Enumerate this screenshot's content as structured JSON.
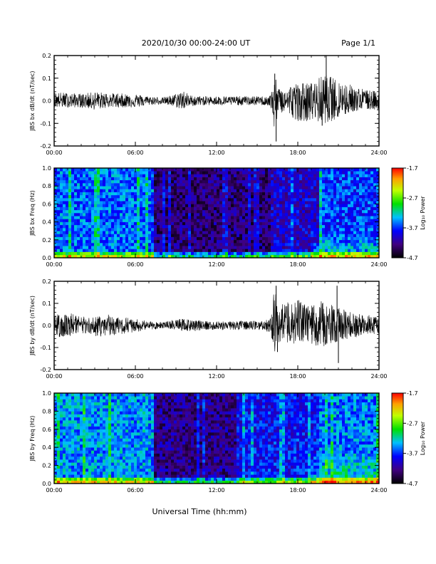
{
  "header": {
    "title": "2020/10/30  00:00-24:00 UT",
    "page": "Page 1/1"
  },
  "chart_data": [
    {
      "type": "line",
      "ylabel": "JBS bx dB/dt (nT/sec)",
      "x_range": [
        0,
        24
      ],
      "ylim": [
        -0.2,
        0.2
      ],
      "y_ticks": [
        "-0.2",
        "-0.1",
        "0.0",
        "0.1",
        "0.2"
      ],
      "x_ticks": [
        "00:00",
        "06:00",
        "12:00",
        "18:00",
        "24:00"
      ],
      "envelope": {
        "x": [
          0,
          2,
          3,
          4,
          6,
          7,
          8,
          9,
          9.5,
          10,
          11,
          12,
          14,
          15.5,
          16,
          16.3,
          16.5,
          17,
          17.5,
          18,
          19,
          20,
          21,
          22,
          23,
          24
        ],
        "upper": [
          0.04,
          0.03,
          0.04,
          0.035,
          0.03,
          0.02,
          0.015,
          0.03,
          0.05,
          0.025,
          0.02,
          0.02,
          0.02,
          0.02,
          0.025,
          0.12,
          0.06,
          0.05,
          0.07,
          0.08,
          0.08,
          0.12,
          0.09,
          0.07,
          0.05,
          0.04
        ],
        "lower": [
          -0.03,
          -0.03,
          -0.04,
          -0.03,
          -0.03,
          -0.02,
          -0.015,
          -0.03,
          -0.04,
          -0.025,
          -0.02,
          -0.02,
          -0.02,
          -0.02,
          -0.025,
          -0.18,
          -0.06,
          -0.05,
          -0.07,
          -0.09,
          -0.09,
          -0.1,
          -0.08,
          -0.05,
          -0.04,
          -0.04
        ]
      },
      "spikes": [
        {
          "x": 16.4,
          "y": -0.18
        },
        {
          "x": 16.3,
          "y": 0.12
        },
        {
          "x": 20.1,
          "y": 0.2
        },
        {
          "x": 19.8,
          "y": -0.11
        }
      ]
    },
    {
      "type": "heatmap",
      "ylabel": "JBS bx Freq (Hz)",
      "x_range": [
        0,
        24
      ],
      "ylim": [
        0,
        1
      ],
      "y_ticks": [
        "0.0",
        "0.2",
        "0.4",
        "0.6",
        "0.8",
        "1.0"
      ],
      "x_ticks": [
        "00:00",
        "06:00",
        "12:00",
        "18:00",
        "24:00"
      ],
      "colorbar": {
        "label": "Log₁₀ Power",
        "range": [
          -4.7,
          -1.7
        ],
        "ticks": [
          "-1.7",
          "-2.7",
          "-3.7",
          "-4.7"
        ]
      },
      "bands": [
        {
          "x": [
            0,
            7.3
          ],
          "level": 0.38
        },
        {
          "x": [
            7.3,
            16.0
          ],
          "level": 0.14
        },
        {
          "x": [
            16.0,
            19.5
          ],
          "level": 0.24
        },
        {
          "x": [
            19.5,
            24
          ],
          "level": 0.34
        }
      ]
    },
    {
      "type": "line",
      "ylabel": "JBS by dB/dt (nT/sec)",
      "x_range": [
        0,
        24
      ],
      "ylim": [
        -0.2,
        0.2
      ],
      "y_ticks": [
        "-0.2",
        "-0.1",
        "0.0",
        "0.1",
        "0.2"
      ],
      "x_ticks": [
        "00:00",
        "06:00",
        "12:00",
        "18:00",
        "24:00"
      ],
      "envelope": {
        "x": [
          0,
          1,
          2,
          3,
          4,
          5,
          6,
          7,
          8,
          9,
          10,
          11,
          12,
          14,
          15.5,
          16,
          16.3,
          16.5,
          17,
          18,
          19,
          20,
          21,
          22,
          23,
          24
        ],
        "upper": [
          0.05,
          0.06,
          0.04,
          0.04,
          0.05,
          0.04,
          0.03,
          0.02,
          0.015,
          0.03,
          0.03,
          0.02,
          0.02,
          0.02,
          0.02,
          0.04,
          0.18,
          0.1,
          0.1,
          0.12,
          0.09,
          0.12,
          0.08,
          0.06,
          0.05,
          0.04
        ],
        "lower": [
          -0.05,
          -0.06,
          -0.04,
          -0.05,
          -0.05,
          -0.04,
          -0.03,
          -0.02,
          -0.015,
          -0.02,
          -0.03,
          -0.02,
          -0.02,
          -0.02,
          -0.02,
          -0.04,
          -0.12,
          -0.08,
          -0.08,
          -0.09,
          -0.09,
          -0.1,
          -0.07,
          -0.06,
          -0.04,
          -0.04
        ]
      },
      "spikes": [
        {
          "x": 16.4,
          "y": 0.18
        },
        {
          "x": 16.5,
          "y": -0.12
        },
        {
          "x": 20.9,
          "y": 0.18
        },
        {
          "x": 21.0,
          "y": -0.17
        }
      ]
    },
    {
      "type": "heatmap",
      "ylabel": "JBS by Freq (Hz)",
      "x_range": [
        0,
        24
      ],
      "ylim": [
        0,
        1
      ],
      "y_ticks": [
        "0.0",
        "0.2",
        "0.4",
        "0.6",
        "0.8",
        "1.0"
      ],
      "x_ticks": [
        "00:00",
        "06:00",
        "12:00",
        "18:00",
        "24:00"
      ],
      "colorbar": {
        "label": "Log₁₀ Power",
        "range": [
          -4.7,
          -1.7
        ],
        "ticks": [
          "-1.7",
          "-2.7",
          "-3.7",
          "-4.7"
        ]
      },
      "bands": [
        {
          "x": [
            0,
            7.3
          ],
          "level": 0.42
        },
        {
          "x": [
            7.3,
            14.0
          ],
          "level": 0.16
        },
        {
          "x": [
            14.0,
            19.5
          ],
          "level": 0.3
        },
        {
          "x": [
            19.5,
            24
          ],
          "level": 0.4
        }
      ]
    }
  ],
  "xlabel": "Universal Time (hh:mm)"
}
